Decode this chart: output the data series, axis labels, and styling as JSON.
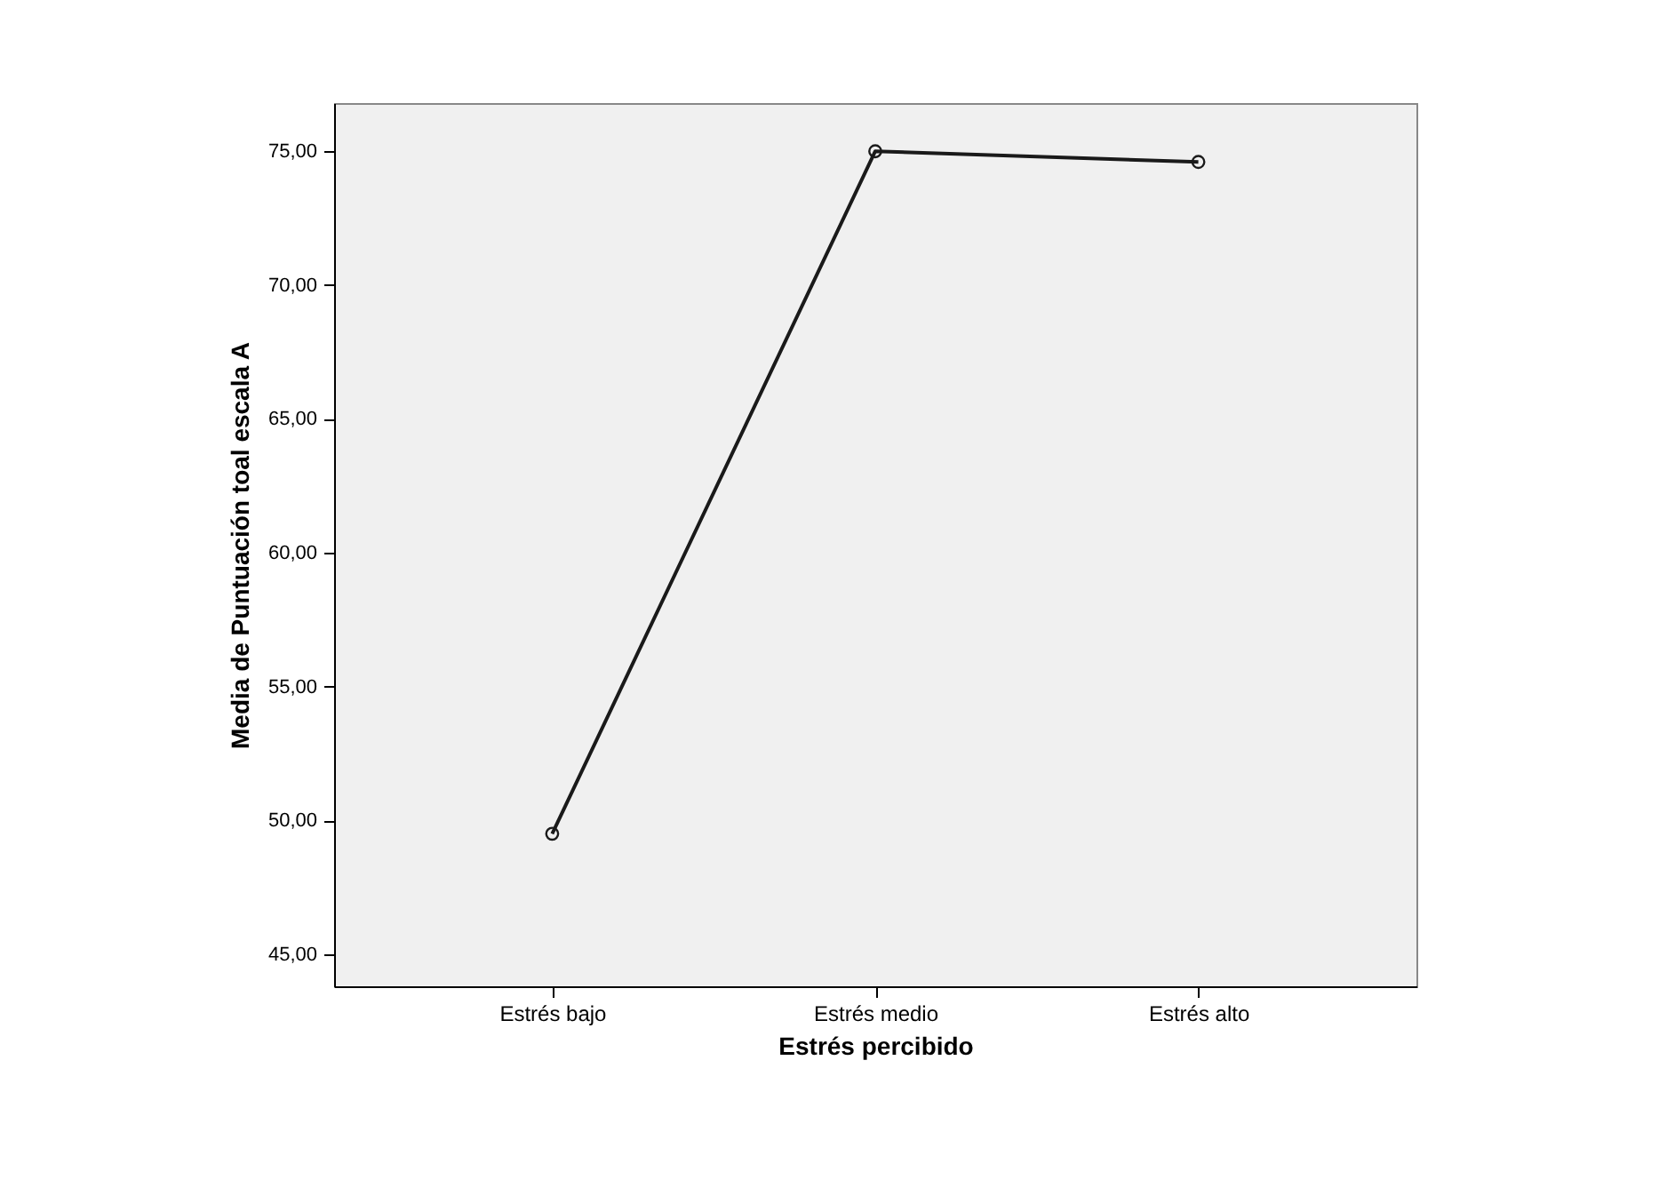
{
  "chart_data": {
    "type": "line",
    "xlabel": "Estrés percibido",
    "ylabel": "Media de Puntuación toal escala A",
    "categories": [
      "Estrés bajo",
      "Estrés medio",
      "Estrés alto"
    ],
    "series": [
      {
        "color": "#1a1a1a",
        "values": [
          49.5,
          75.0,
          74.6
        ]
      }
    ],
    "ylim": [
      43.8,
      76.8
    ],
    "yticks": [
      {
        "value": 45,
        "label": "45,00"
      },
      {
        "value": 50,
        "label": "50,00"
      },
      {
        "value": 55,
        "label": "55,00"
      },
      {
        "value": 60,
        "label": "60,00"
      },
      {
        "value": 65,
        "label": "65,00"
      },
      {
        "value": 70,
        "label": "70,00"
      },
      {
        "value": 75,
        "label": "75,00"
      }
    ],
    "grid": false,
    "marker": "circle",
    "line_style": "solid"
  }
}
